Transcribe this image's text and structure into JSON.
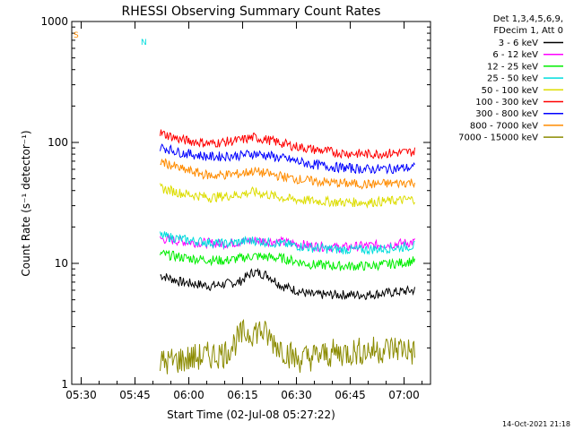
{
  "chart_data": {
    "type": "line",
    "title": "RHESSI Observing Summary Count Rates",
    "xlabel": "Start Time (02-Jul-08 05:27:22)",
    "ylabel": "Count Rate (s⁻¹ detector⁻¹)",
    "y_scale": "log",
    "ylim": [
      1,
      1000
    ],
    "xlim": [
      "05:27:22",
      "07:07:22"
    ],
    "x_ticks": [
      "05:30",
      "05:45",
      "06:00",
      "06:15",
      "06:30",
      "06:45",
      "07:00"
    ],
    "y_ticks": [
      "1",
      "10",
      "100",
      "1000"
    ],
    "legend": {
      "position": "top-right",
      "header": [
        "Det 1,3,4,5,6,9,",
        "FDecim 1, Att 0"
      ]
    },
    "series": [
      {
        "name": "3 - 6 keV",
        "color": "#000000",
        "x": [
          "05:52",
          "05:58",
          "06:06",
          "06:14",
          "06:18",
          "06:22",
          "06:26",
          "06:34",
          "06:42",
          "06:50",
          "06:58",
          "07:03"
        ],
        "values": [
          8,
          7,
          6.5,
          7,
          8.5,
          8,
          6.5,
          5.5,
          5.5,
          5.5,
          5.8,
          6
        ]
      },
      {
        "name": "6 - 12 keV",
        "color": "#ff00ff",
        "x": [
          "05:52",
          "06:00",
          "06:10",
          "06:18",
          "06:26",
          "06:34",
          "06:42",
          "06:50",
          "06:58",
          "07:03"
        ],
        "values": [
          16,
          15,
          14.5,
          15.5,
          15,
          14,
          13.5,
          14,
          14.5,
          15
        ]
      },
      {
        "name": "12 - 25 keV",
        "color": "#00ee00",
        "x": [
          "05:52",
          "06:00",
          "06:10",
          "06:18",
          "06:26",
          "06:34",
          "06:42",
          "06:50",
          "06:58",
          "07:03"
        ],
        "values": [
          12,
          11,
          10.5,
          11.5,
          11,
          9.8,
          9.5,
          9.5,
          10,
          10.5
        ]
      },
      {
        "name": "25 - 50 keV",
        "color": "#00dddd",
        "x": [
          "05:52",
          "06:00",
          "06:10",
          "06:18",
          "06:26",
          "06:34",
          "06:42",
          "06:50",
          "06:58",
          "07:03"
        ],
        "values": [
          17,
          15.5,
          14.5,
          15.5,
          14.5,
          13.5,
          13,
          13,
          13.5,
          14
        ]
      },
      {
        "name": "50 - 100 keV",
        "color": "#dddd00",
        "x": [
          "05:52",
          "05:58",
          "06:06",
          "06:14",
          "06:18",
          "06:22",
          "06:28",
          "06:34",
          "06:42",
          "06:50",
          "06:58",
          "07:03"
        ],
        "values": [
          42,
          38,
          35,
          37,
          39,
          37,
          34,
          33,
          32,
          32,
          33,
          34
        ]
      },
      {
        "name": "100 - 300 keV",
        "color": "#ff0000",
        "x": [
          "05:52",
          "05:58",
          "06:06",
          "06:14",
          "06:18",
          "06:22",
          "06:28",
          "06:34",
          "06:42",
          "06:50",
          "06:58",
          "07:03"
        ],
        "values": [
          120,
          105,
          98,
          104,
          110,
          105,
          95,
          88,
          82,
          80,
          82,
          84
        ]
      },
      {
        "name": "300 - 800 keV",
        "color": "#0000ff",
        "x": [
          "05:52",
          "05:58",
          "06:06",
          "06:14",
          "06:18",
          "06:22",
          "06:28",
          "06:34",
          "06:42",
          "06:50",
          "06:58",
          "07:03"
        ],
        "values": [
          92,
          82,
          76,
          78,
          81,
          78,
          72,
          66,
          62,
          60,
          61,
          62
        ]
      },
      {
        "name": "800 - 7000 keV",
        "color": "#ff8c00",
        "x": [
          "05:52",
          "05:58",
          "06:06",
          "06:14",
          "06:18",
          "06:22",
          "06:28",
          "06:34",
          "06:42",
          "06:50",
          "06:58",
          "07:03"
        ],
        "values": [
          70,
          60,
          53,
          55,
          58,
          55,
          51,
          48,
          46,
          45,
          46,
          47
        ]
      },
      {
        "name": "7000 - 15000 keV",
        "color": "#8b8b00",
        "x": [
          "05:52",
          "06:10",
          "06:15",
          "06:20",
          "06:24",
          "06:30",
          "06:40",
          "06:50",
          "07:00",
          "07:03"
        ],
        "values": [
          1.5,
          1.8,
          2.6,
          2.8,
          2.2,
          1.6,
          1.8,
          1.9,
          2,
          1.8
        ]
      }
    ],
    "annotations": [
      {
        "text": "S",
        "color": "#ff8c00"
      },
      {
        "text": "N",
        "color": "#00dddd"
      }
    ],
    "grid": false
  },
  "footer": {
    "date": "14-Oct-2021 21:18"
  }
}
